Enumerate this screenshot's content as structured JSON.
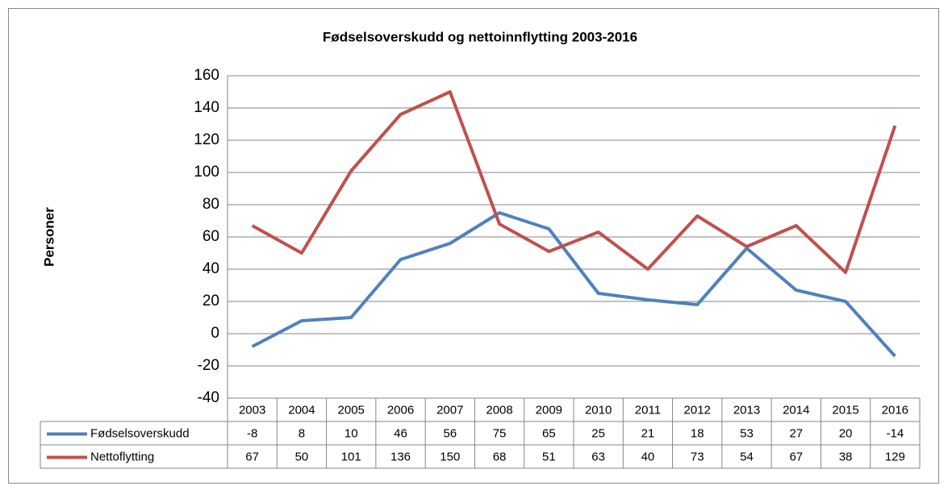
{
  "chart_data": {
    "type": "line",
    "title": "Fødselsoverskudd og nettoinnflytting 2003-2016",
    "y_label": "Personer",
    "categories": [
      "2003",
      "2004",
      "2005",
      "2006",
      "2007",
      "2008",
      "2009",
      "2010",
      "2011",
      "2012",
      "2013",
      "2014",
      "2015",
      "2016"
    ],
    "series": [
      {
        "name": "Fødselsoverskudd",
        "color": "#4f81bd",
        "values": [
          -8,
          8,
          10,
          46,
          56,
          75,
          65,
          25,
          21,
          18,
          53,
          27,
          20,
          -14
        ]
      },
      {
        "name": "Nettoflytting",
        "color": "#c0504d",
        "values": [
          67,
          50,
          101,
          136,
          150,
          68,
          51,
          63,
          40,
          73,
          54,
          67,
          38,
          129
        ]
      }
    ],
    "ylim": [
      -40,
      160
    ],
    "yticks": [
      -40,
      -20,
      0,
      20,
      40,
      60,
      80,
      100,
      120,
      140,
      160
    ],
    "grid": true,
    "data_table": true
  }
}
